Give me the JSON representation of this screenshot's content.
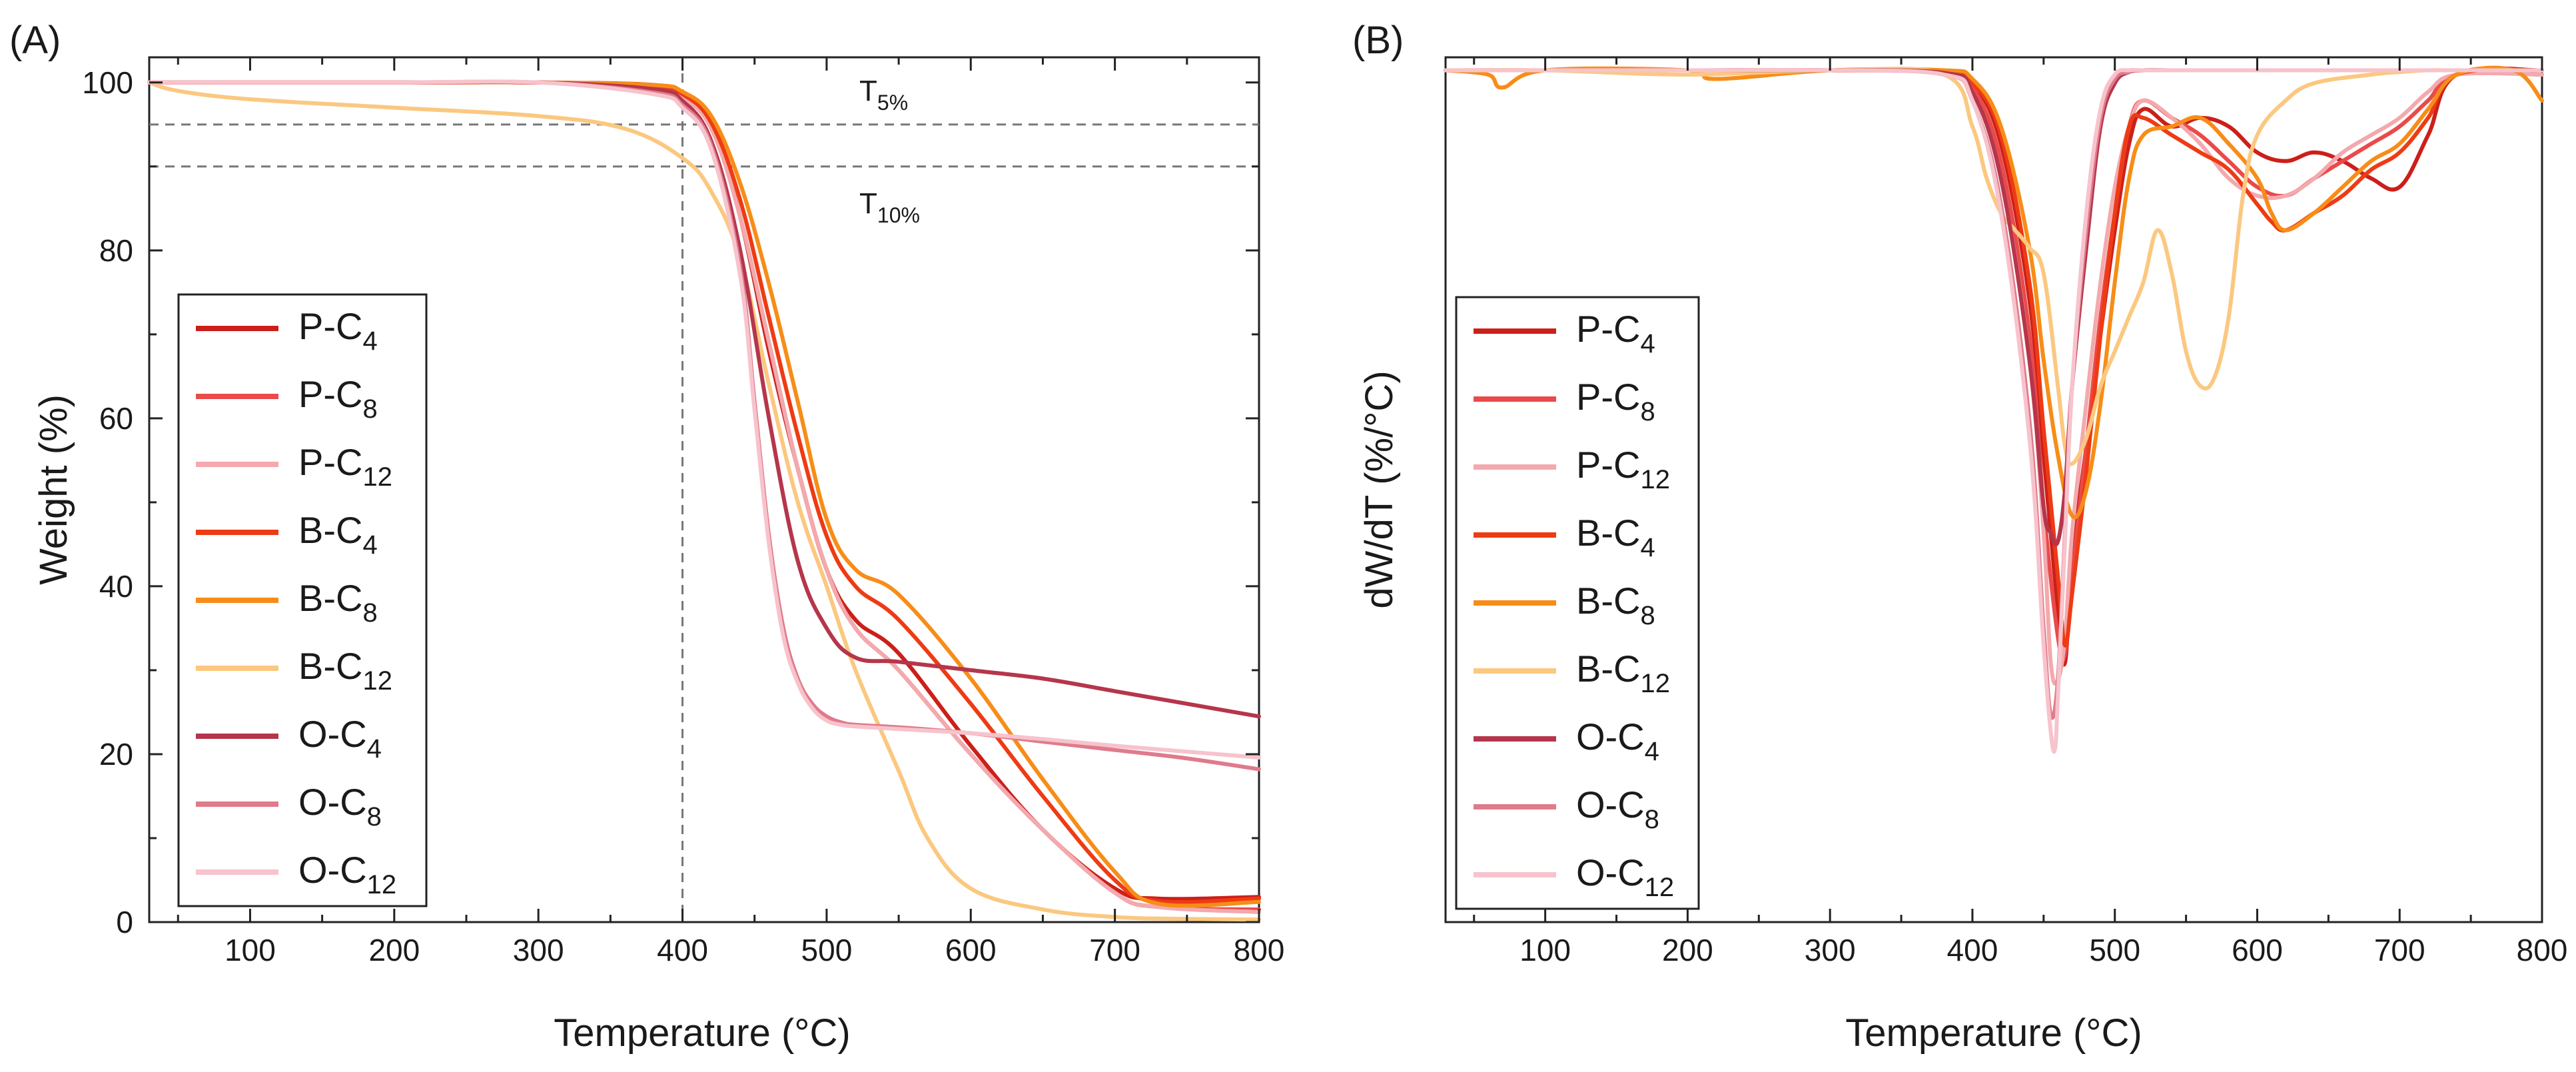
{
  "chart_data": [
    {
      "panel": "(A)",
      "type": "line",
      "title": "",
      "xlabel": "Temperature (°C)",
      "ylabel": "Weight (%)",
      "xlim": [
        30,
        800
      ],
      "ylim": [
        0,
        103
      ],
      "xticks": [
        100,
        200,
        300,
        400,
        500,
        600,
        700,
        800
      ],
      "yticks": [
        0,
        20,
        40,
        60,
        80,
        100
      ],
      "annotations": [
        {
          "text": "T",
          "sub": "5%",
          "y_value": 95
        },
        {
          "text": "T",
          "sub": "10%",
          "y_value": 90
        }
      ],
      "reference_lines": {
        "vertical_x": 400,
        "horizontal_y": [
          95,
          90
        ]
      },
      "legend_position": "bottom-left",
      "series": [
        {
          "name": "P-C",
          "sub": "4",
          "color": "#cc1f1a",
          "x": [
            30,
            100,
            200,
            300,
            380,
            400,
            420,
            440,
            460,
            480,
            500,
            520,
            550,
            600,
            650,
            700,
            730,
            800
          ],
          "y": [
            100,
            100,
            100,
            100,
            99.7,
            98.6,
            95,
            84,
            68,
            54,
            42,
            36,
            32,
            21,
            11,
            4,
            2.8,
            3
          ]
        },
        {
          "name": "P-C",
          "sub": "8",
          "color": "#ea4a4a",
          "x": [
            30,
            100,
            200,
            300,
            380,
            400,
            420,
            440,
            460,
            480,
            500,
            520,
            550,
            600,
            650,
            700,
            730,
            800
          ],
          "y": [
            100,
            100,
            100,
            100,
            99.5,
            98.4,
            94.8,
            84,
            69,
            54,
            42,
            35,
            30,
            20,
            11,
            3.5,
            1.8,
            1.5
          ]
        },
        {
          "name": "P-C",
          "sub": "12",
          "color": "#f3a9ad",
          "x": [
            30,
            100,
            200,
            300,
            380,
            400,
            420,
            440,
            460,
            480,
            500,
            520,
            550,
            600,
            650,
            700,
            730,
            800
          ],
          "y": [
            100,
            100,
            100,
            100,
            99.4,
            98.2,
            94.5,
            84,
            69,
            54,
            42,
            35,
            30,
            20,
            11,
            3.5,
            1.8,
            1.2
          ]
        },
        {
          "name": "B-C",
          "sub": "4",
          "color": "#ee3b14",
          "x": [
            30,
            100,
            200,
            300,
            380,
            400,
            420,
            440,
            460,
            480,
            500,
            520,
            550,
            600,
            650,
            700,
            730,
            800
          ],
          "y": [
            100,
            100,
            100,
            100,
            99.6,
            98.6,
            95.2,
            86,
            72,
            58,
            46,
            40,
            36,
            26,
            15,
            5,
            2.5,
            2.8
          ]
        },
        {
          "name": "B-C",
          "sub": "8",
          "color": "#f78d18",
          "x": [
            30,
            100,
            200,
            300,
            380,
            400,
            420,
            440,
            460,
            480,
            500,
            520,
            550,
            600,
            650,
            700,
            730,
            800
          ],
          "y": [
            100,
            100,
            100,
            100,
            99.7,
            98.9,
            96,
            88,
            76,
            62,
            48,
            42,
            39,
            29,
            17,
            6,
            2.2,
            2.4
          ]
        },
        {
          "name": "B-C",
          "sub": "12",
          "color": "#fbc880",
          "x": [
            30,
            50,
            100,
            200,
            300,
            360,
            400,
            420,
            440,
            460,
            480,
            500,
            520,
            550,
            570,
            600,
            650,
            700,
            740,
            800
          ],
          "y": [
            100,
            99,
            98,
            97,
            96,
            94.5,
            91,
            87,
            79,
            64,
            50,
            40,
            30,
            18,
            10,
            4,
            1.5,
            0.6,
            0.4,
            0.3
          ]
        },
        {
          "name": "O-C",
          "sub": "4",
          "color": "#b5364b",
          "x": [
            30,
            100,
            200,
            300,
            380,
            400,
            420,
            440,
            460,
            480,
            500,
            520,
            550,
            600,
            650,
            700,
            750,
            800
          ],
          "y": [
            100,
            100,
            100,
            100,
            99.2,
            97.8,
            93,
            80,
            60,
            43,
            35,
            31.5,
            31,
            30,
            29,
            27.5,
            26,
            24.5
          ]
        },
        {
          "name": "O-C",
          "sub": "8",
          "color": "#df7b8b",
          "x": [
            30,
            100,
            200,
            300,
            380,
            400,
            420,
            440,
            450,
            460,
            470,
            480,
            490,
            500,
            510,
            520,
            550,
            600,
            650,
            700,
            750,
            800
          ],
          "y": [
            100,
            100,
            100,
            100,
            98.8,
            97.3,
            92.5,
            78,
            62,
            46,
            35,
            29,
            26,
            24.5,
            23.8,
            23.5,
            23.2,
            22.5,
            21.5,
            20.5,
            19.5,
            18.2
          ]
        },
        {
          "name": "O-C",
          "sub": "12",
          "color": "#f7c3cc",
          "x": [
            30,
            100,
            200,
            300,
            380,
            400,
            420,
            440,
            450,
            460,
            470,
            480,
            490,
            500,
            510,
            520,
            550,
            600,
            650,
            700,
            750,
            800
          ],
          "y": [
            100,
            100,
            100,
            100,
            98.6,
            97,
            92,
            77,
            61,
            45,
            34,
            28.5,
            25.5,
            24,
            23.5,
            23.3,
            23,
            22.5,
            21.8,
            21,
            20.3,
            19.6
          ]
        }
      ]
    },
    {
      "panel": "(B)",
      "type": "line",
      "title": "",
      "xlabel": "Temperature (°C)",
      "ylabel": "dW/dT (%/°C)",
      "xlim": [
        30,
        800
      ],
      "ylim": [
        0,
        100
      ],
      "xticks": [
        100,
        200,
        300,
        400,
        500,
        600,
        700,
        800
      ],
      "yticks": [],
      "legend_position": "bottom-left",
      "series": [
        {
          "name": "P-C",
          "sub": "4",
          "color": "#cc1f1a",
          "x": [
            30,
            100,
            200,
            300,
            380,
            400,
            420,
            440,
            450,
            460,
            465,
            470,
            480,
            490,
            500,
            510,
            520,
            540,
            560,
            580,
            600,
            620,
            640,
            660,
            680,
            700,
            720,
            740,
            800
          ],
          "y": [
            98.5,
            98.5,
            98.5,
            98.5,
            98.3,
            97,
            90,
            72,
            54,
            36,
            30,
            42,
            55,
            68,
            80,
            90,
            94,
            92,
            93,
            92,
            89,
            88,
            89,
            88,
            86,
            85,
            91,
            98,
            98.5
          ]
        },
        {
          "name": "P-C",
          "sub": "8",
          "color": "#ea4a4a",
          "x": [
            30,
            100,
            200,
            300,
            380,
            400,
            420,
            440,
            450,
            460,
            465,
            470,
            480,
            490,
            500,
            510,
            520,
            540,
            560,
            580,
            600,
            620,
            640,
            660,
            680,
            700,
            720,
            740,
            800
          ],
          "y": [
            98.5,
            98.5,
            98.5,
            98.5,
            98.2,
            96.5,
            88,
            68,
            48,
            33,
            31,
            40,
            55,
            70,
            82,
            92,
            95,
            93,
            91,
            88,
            85,
            84,
            86,
            88,
            90,
            92,
            95,
            98,
            98
          ]
        },
        {
          "name": "P-C",
          "sub": "12",
          "color": "#f3a9ad",
          "x": [
            30,
            100,
            200,
            300,
            380,
            400,
            420,
            440,
            450,
            455,
            460,
            465,
            470,
            480,
            490,
            500,
            510,
            520,
            540,
            560,
            580,
            600,
            620,
            640,
            660,
            680,
            700,
            720,
            740,
            800
          ],
          "y": [
            98.5,
            98.5,
            98.5,
            98.5,
            98.2,
            96,
            86,
            65,
            45,
            30,
            28,
            33,
            45,
            60,
            74,
            85,
            92,
            95,
            93,
            90,
            86,
            84,
            84,
            86,
            89,
            91,
            93,
            96,
            98,
            98
          ]
        },
        {
          "name": "B-C",
          "sub": "4",
          "color": "#ee3b14",
          "x": [
            30,
            100,
            200,
            300,
            380,
            400,
            420,
            440,
            450,
            460,
            465,
            470,
            480,
            490,
            500,
            510,
            520,
            540,
            560,
            580,
            600,
            610,
            620,
            640,
            660,
            680,
            700,
            720,
            740,
            800
          ],
          "y": [
            98.5,
            98.5,
            98.5,
            98.5,
            98.3,
            97,
            91,
            74,
            57,
            40,
            32,
            38,
            52,
            68,
            82,
            92,
            93,
            91,
            89,
            87,
            83,
            81,
            80,
            82,
            84,
            87,
            89,
            93,
            98,
            98.5
          ]
        },
        {
          "name": "B-C",
          "sub": "8",
          "color": "#f78d18",
          "x": [
            30,
            60,
            70,
            100,
            200,
            220,
            300,
            380,
            400,
            420,
            440,
            450,
            460,
            470,
            480,
            490,
            500,
            510,
            520,
            540,
            560,
            580,
            600,
            610,
            620,
            640,
            660,
            680,
            700,
            720,
            740,
            780,
            800
          ],
          "y": [
            98.5,
            98,
            96.5,
            98.5,
            98.5,
            97.5,
            98.5,
            98.5,
            97.5,
            92,
            78,
            65,
            54,
            47,
            50,
            60,
            74,
            86,
            91,
            92,
            93,
            90,
            86,
            82,
            80,
            82,
            85,
            88,
            90,
            94,
            98,
            98.5,
            95
          ]
        },
        {
          "name": "B-C",
          "sub": "12",
          "color": "#fbc880",
          "x": [
            30,
            100,
            200,
            300,
            380,
            400,
            410,
            420,
            430,
            440,
            450,
            460,
            465,
            470,
            480,
            490,
            500,
            510,
            520,
            530,
            540,
            550,
            560,
            570,
            580,
            590,
            600,
            620,
            640,
            680,
            700,
            720,
            740,
            800
          ],
          "y": [
            98.5,
            98.5,
            98,
            98.5,
            98,
            92,
            86,
            82,
            80,
            78,
            75,
            62,
            55,
            53,
            56,
            62,
            66,
            70,
            74,
            80,
            75,
            66,
            62,
            63,
            70,
            84,
            91,
            95,
            97,
            98,
            98.3,
            98.5,
            98.5,
            98.5
          ]
        },
        {
          "name": "O-C",
          "sub": "4",
          "color": "#b5364b",
          "x": [
            30,
            100,
            200,
            300,
            380,
            400,
            420,
            440,
            450,
            455,
            460,
            465,
            470,
            480,
            490,
            500,
            510,
            520,
            540,
            560,
            600,
            650,
            700,
            750,
            800
          ],
          "y": [
            98.5,
            98.5,
            98.5,
            98.5,
            98.2,
            96,
            86,
            65,
            48,
            45,
            44,
            50,
            62,
            78,
            92,
            97,
            98.3,
            98.5,
            98.5,
            98.5,
            98.5,
            98.5,
            98.5,
            98.5,
            98.5
          ]
        },
        {
          "name": "O-C",
          "sub": "8",
          "color": "#df7b8b",
          "x": [
            30,
            100,
            200,
            300,
            380,
            400,
            420,
            440,
            450,
            455,
            460,
            465,
            470,
            480,
            490,
            500,
            510,
            520,
            540,
            560,
            600,
            650,
            700,
            750,
            800
          ],
          "y": [
            98.5,
            98.5,
            98.5,
            98.5,
            98,
            95,
            83,
            58,
            34,
            24,
            28,
            45,
            62,
            80,
            93,
            97.5,
            98.3,
            98.5,
            98.5,
            98.5,
            98.5,
            98.5,
            98.5,
            98.5,
            98.5
          ]
        },
        {
          "name": "O-C",
          "sub": "12",
          "color": "#f7c3cc",
          "x": [
            30,
            100,
            200,
            300,
            380,
            400,
            420,
            440,
            450,
            455,
            458,
            460,
            465,
            470,
            480,
            490,
            500,
            510,
            520,
            540,
            560,
            600,
            650,
            700,
            750,
            800
          ],
          "y": [
            98.5,
            98.5,
            98.5,
            98.5,
            98,
            95,
            82,
            56,
            32,
            22,
            20,
            26,
            44,
            62,
            82,
            94,
            98,
            98.5,
            98.5,
            98.5,
            98.5,
            98.5,
            98.5,
            98.5,
            98.5,
            98.5
          ]
        }
      ]
    }
  ]
}
